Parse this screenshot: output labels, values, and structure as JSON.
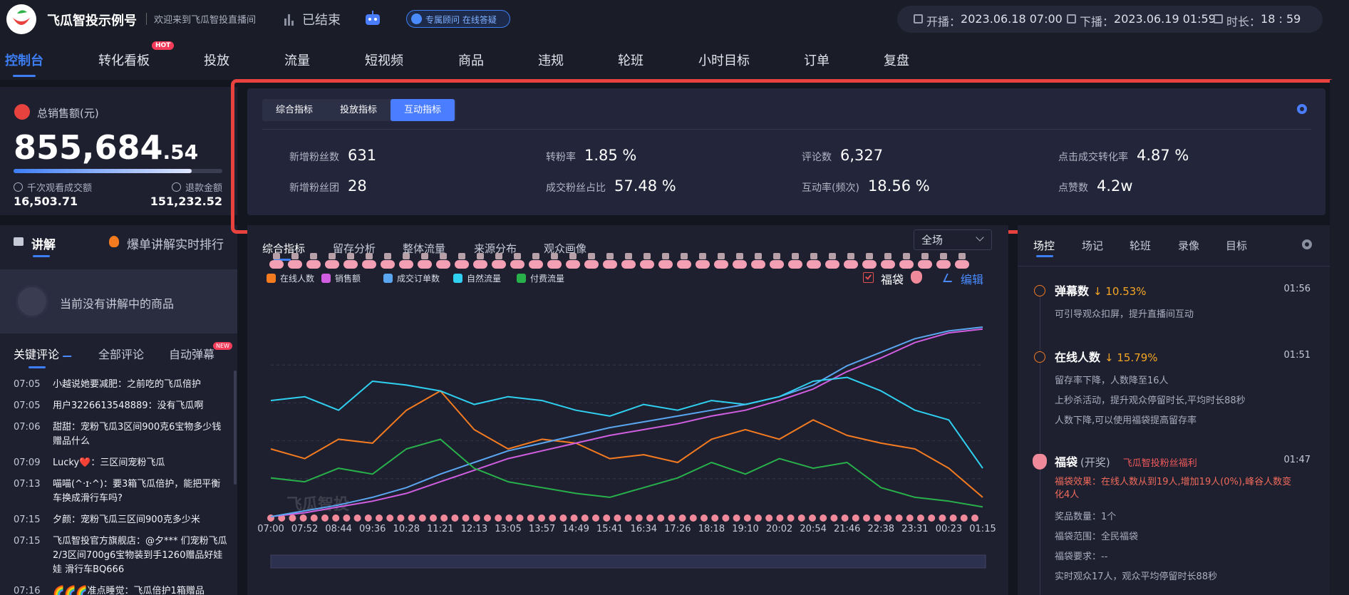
{
  "header": {
    "brand": "飞瓜智投示例号",
    "welcome": "欢迎来到飞瓜智投直播间",
    "status": "已结束",
    "advisor": "专属顾问 在线答疑",
    "start_label": "开播：",
    "start": "2023.06.18 07:00",
    "end_label": "下播：",
    "end": "2023.06.19 01:59",
    "duration_label": "时长：",
    "duration": "18 : 59"
  },
  "nav": {
    "tabs": [
      "控制台",
      "转化看板",
      "投放",
      "流量",
      "短视频",
      "商品",
      "违规",
      "轮班",
      "小时目标",
      "订单",
      "复盘"
    ],
    "active": 0,
    "badge": "HOT"
  },
  "sales": {
    "label": "总销售额(元)",
    "integer": "855,684",
    "decimal": ".54",
    "stats": [
      {
        "label": "千次观看成交额",
        "value": "16,503.71"
      },
      {
        "label": "退款金额",
        "value": "151,232.52"
      }
    ]
  },
  "explain": {
    "tabs": [
      "讲解",
      "爆单讲解实时排行"
    ],
    "empty": "当前没有讲解中的商品"
  },
  "comments": {
    "tabs": [
      "关键评论",
      "全部评论",
      "自动弹幕"
    ],
    "badge": "NEW",
    "items": [
      {
        "time": "07:05",
        "text": "小越说她要减肥：之前吃的飞瓜倍护"
      },
      {
        "time": "07:05",
        "text": "用户3226613548889：没有飞瓜啊"
      },
      {
        "time": "07:06",
        "text": "甜甜：宠粉飞瓜3区间900克6宝物多少钱赠品什么"
      },
      {
        "time": "07:09",
        "text": "Lucky❤️：三区间宠粉飞瓜"
      },
      {
        "time": "07:13",
        "text": "喵喵(^·ɪ·^)：要3箱飞瓜倍护，能把平衡车换成滑行车吗?"
      },
      {
        "time": "07:15",
        "text": "夕颜：宠粉飞瓜三区间900克多少米"
      },
      {
        "time": "07:15",
        "text": "飞瓜智投官方旗舰店：@夕*** 们宠粉飞瓜2/3区间700g6宝物装到手1260赠品好娃娃 滑行车BQ666"
      },
      {
        "time": "07:16",
        "text": "🌈🌈🌈准点睡觉：飞瓜倍护1箱赠品"
      }
    ]
  },
  "metrics": {
    "tabs": [
      "综合指标",
      "投放指标",
      "互动指标"
    ],
    "active": 2,
    "items": [
      {
        "label": "新增粉丝数",
        "value": "631"
      },
      {
        "label": "转粉率",
        "value": "1.85 %"
      },
      {
        "label": "评论数",
        "value": "6,327"
      },
      {
        "label": "点击成交转化率",
        "value": "4.87 %"
      },
      {
        "label": "新增粉丝团",
        "value": "28"
      },
      {
        "label": "成交粉丝占比",
        "value": "57.48 %"
      },
      {
        "label": "互动率(频次)",
        "value": "18.56 %"
      },
      {
        "label": "点赞数",
        "value": "4.2w"
      }
    ]
  },
  "chart_panel": {
    "tabs": [
      "综合指标",
      "留存分析",
      "整体流量",
      "来源分布",
      "观众画像"
    ],
    "active": 0,
    "scope": "全场",
    "lucky_bag": "福袋",
    "edit": "编辑",
    "watermark": "飞瓜智投"
  },
  "chart_data": {
    "type": "line",
    "categories": [
      "07:00",
      "07:52",
      "08:44",
      "09:36",
      "10:28",
      "11:21",
      "12:13",
      "13:05",
      "13:57",
      "14:49",
      "15:41",
      "16:34",
      "17:26",
      "18:18",
      "19:10",
      "20:02",
      "20:54",
      "21:46",
      "22:38",
      "23:31",
      "00:23",
      "01:15"
    ],
    "series": [
      {
        "name": "在线人数",
        "color": "#f57b20",
        "values": [
          35,
          30,
          40,
          38,
          55,
          65,
          45,
          35,
          40,
          38,
          30,
          32,
          28,
          40,
          45,
          40,
          50,
          42,
          38,
          35,
          25,
          10
        ]
      },
      {
        "name": "销售额",
        "color": "#d15ee0",
        "values": [
          0,
          2,
          5,
          8,
          12,
          18,
          24,
          30,
          34,
          38,
          42,
          45,
          48,
          52,
          55,
          60,
          66,
          75,
          82,
          90,
          95,
          97
        ]
      },
      {
        "name": "成交订单数",
        "color": "#5aa6f0",
        "values": [
          0,
          3,
          6,
          10,
          15,
          22,
          28,
          34,
          38,
          42,
          46,
          49,
          52,
          55,
          58,
          62,
          68,
          78,
          85,
          92,
          96,
          98
        ]
      },
      {
        "name": "自然流量",
        "color": "#2fd0f0",
        "values": [
          60,
          62,
          55,
          70,
          68,
          65,
          58,
          62,
          60,
          55,
          52,
          58,
          55,
          60,
          58,
          62,
          70,
          72,
          65,
          55,
          50,
          25
        ]
      },
      {
        "name": "付费流量",
        "color": "#28b04a",
        "values": [
          20,
          18,
          25,
          22,
          35,
          40,
          25,
          18,
          15,
          12,
          10,
          15,
          20,
          28,
          22,
          30,
          25,
          28,
          15,
          10,
          8,
          5
        ]
      }
    ]
  },
  "control": {
    "tabs": [
      "场控",
      "场记",
      "轮班",
      "录像",
      "目标"
    ],
    "active": 0,
    "events": [
      {
        "title": "弹幕数",
        "change": "↓ 10.53%",
        "time": "01:56",
        "lines": [
          "可引导观众扣屏，提升直播间互动"
        ]
      },
      {
        "title": "在线人数",
        "change": "↓ 15.79%",
        "time": "01:51",
        "lines": [
          "留存率下降，人数降至16人",
          "上秒杀活动，提升观众停留时长,平均时长88秒",
          "人数下降,可以使用福袋提高留存率"
        ]
      },
      {
        "title": "福袋",
        "tag": "(开奖)",
        "note": "飞瓜智投粉丝福利",
        "time": "01:47",
        "alert": "福袋效果：在线人数从到19人,增加19人(0%),峰谷人数变化4人",
        "lines": [
          "奖品数量：1个",
          "福袋范围：全民福袋",
          "福袋要求：--",
          "实时观众17人，观众平均停留时长88秒"
        ]
      }
    ]
  }
}
